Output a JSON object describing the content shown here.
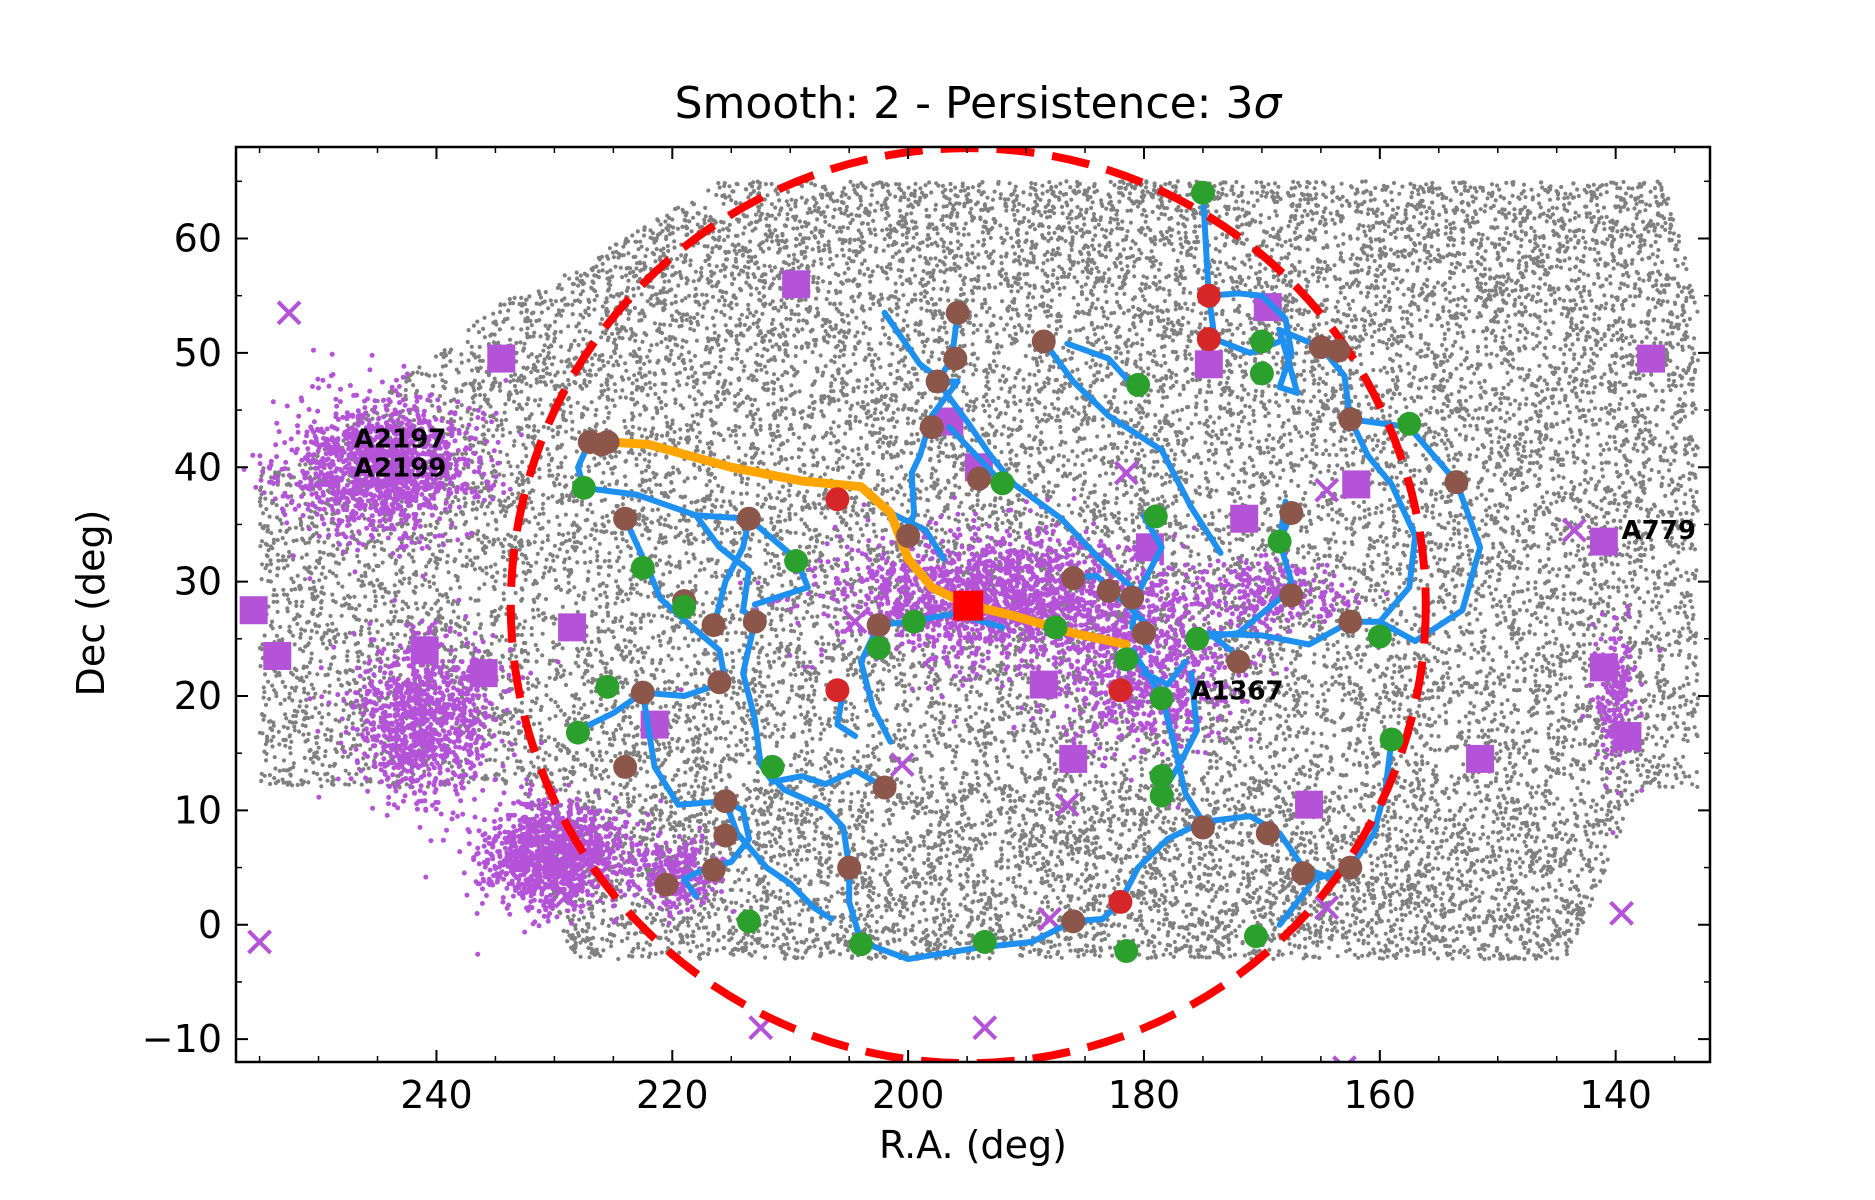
{
  "chart_data": {
    "type": "scatter",
    "title": "Smooth: 2 - Persistence: 3",
    "title_symbol": "σ",
    "xlabel": "R.A. (deg)",
    "ylabel": "Dec (deg)",
    "xlim": [
      257,
      132
    ],
    "ylim": [
      -12,
      68
    ],
    "x_ticks": [
      240,
      220,
      200,
      180,
      160,
      140
    ],
    "y_ticks": [
      -10,
      0,
      10,
      20,
      30,
      40,
      50,
      60
    ],
    "x_tick_labels": [
      "240",
      "220",
      "200",
      "180",
      "160",
      "140"
    ],
    "y_tick_labels": [
      "−10",
      "0",
      "10",
      "20",
      "30",
      "40",
      "50",
      "60"
    ],
    "grid": false,
    "colors": {
      "galaxies": "#808080",
      "cluster_members": "#b452d8",
      "filaments": "#1e90f0",
      "main_filament": "#ffa500",
      "circle": "#ff0000",
      "center": "#ff0000",
      "critical_min": "#2ca02c",
      "critical_saddle": "#8c564b",
      "critical_max": "#d62728"
    },
    "circle": {
      "center": [
        194.9,
        27.9
      ],
      "radius_deg": 40,
      "style": "dashed"
    },
    "center_marker": {
      "ra": 194.9,
      "dec": 27.9,
      "marker": "square"
    },
    "cluster_labels": [
      {
        "text": "A2197",
        "ra": 247.0,
        "dec": 42.5
      },
      {
        "text": "A2199",
        "ra": 247.0,
        "dec": 40.0
      },
      {
        "text": "A779",
        "ra": 139.5,
        "dec": 34.5
      },
      {
        "text": "A1367",
        "ra": 176.0,
        "dec": 20.5
      }
    ],
    "cluster_squares": [
      [
        209.5,
        56
      ],
      [
        234.5,
        49.5
      ],
      [
        255.5,
        27.5
      ],
      [
        253.5,
        23.5
      ],
      [
        241,
        24
      ],
      [
        236,
        22
      ],
      [
        228.5,
        26
      ],
      [
        221.5,
        17.5
      ],
      [
        188.5,
        21
      ],
      [
        186,
        14.5
      ],
      [
        179.5,
        33
      ],
      [
        171.5,
        35.5
      ],
      [
        169.5,
        54
      ],
      [
        174.5,
        49
      ],
      [
        162,
        38.5
      ],
      [
        166,
        10.5
      ],
      [
        151.5,
        14.5
      ],
      [
        141,
        33.5
      ],
      [
        141,
        22.5
      ],
      [
        139,
        16.5
      ],
      [
        137,
        49.5
      ],
      [
        196.5,
        44
      ],
      [
        194,
        40
      ]
    ],
    "crosses": [
      [
        252.5,
        53.5
      ],
      [
        255,
        -1.5
      ],
      [
        212.5,
        -9
      ],
      [
        193.5,
        -9
      ],
      [
        186.5,
        10.5
      ],
      [
        181.5,
        39.5
      ],
      [
        164.5,
        38
      ],
      [
        143.5,
        34.5
      ],
      [
        139.5,
        1
      ],
      [
        164.5,
        1.5
      ],
      [
        188,
        0.5
      ],
      [
        200.5,
        14
      ],
      [
        204.5,
        26.5
      ],
      [
        229,
        2.5
      ],
      [
        163,
        -12.5
      ]
    ],
    "member_regions": [
      {
        "ra": 244.5,
        "dec": 40,
        "sra": 4.0,
        "sdec": 3.0,
        "n": 1400
      },
      {
        "ra": 241,
        "dec": 18,
        "sra": 3.0,
        "sdec": 3.5,
        "n": 1000
      },
      {
        "ra": 230,
        "dec": 6,
        "sra": 3.0,
        "sdec": 2.2,
        "n": 1200
      },
      {
        "ra": 219.5,
        "dec": 4.5,
        "sra": 1.8,
        "sdec": 1.5,
        "n": 260
      },
      {
        "ra": 192,
        "dec": 28.5,
        "sra": 7.0,
        "sdec": 2.8,
        "n": 1700
      },
      {
        "ra": 180,
        "dec": 22,
        "sra": 4.0,
        "sdec": 3.5,
        "n": 700
      },
      {
        "ra": 169,
        "dec": 29,
        "sra": 3.0,
        "sdec": 1.5,
        "n": 250
      },
      {
        "ra": 140,
        "dec": 20,
        "sra": 1.0,
        "sdec": 3.0,
        "n": 200
      }
    ],
    "galaxy_field": {
      "n": 22000,
      "dec_range": [
        -3,
        65
      ],
      "seed": 11
    },
    "main_filament": [
      [
        227,
        42.3
      ],
      [
        222,
        42
      ],
      [
        215,
        40
      ],
      [
        209,
        38.8
      ],
      [
        204,
        38.3
      ],
      [
        201.5,
        36
      ],
      [
        200,
        32
      ],
      [
        198,
        29.5
      ],
      [
        195,
        28
      ],
      [
        191,
        27
      ],
      [
        186,
        25.5
      ],
      [
        181.5,
        24.5
      ]
    ],
    "filaments": [
      [
        [
          175,
          64
        ],
        [
          174.5,
          55
        ],
        [
          172,
          55.2
        ],
        [
          170,
          55
        ],
        [
          168,
          53
        ],
        [
          167.5,
          50
        ],
        [
          168.5,
          47
        ],
        [
          167,
          46.5
        ],
        [
          168.5,
          52
        ]
      ],
      [
        [
          174.5,
          55
        ],
        [
          174,
          51.2
        ],
        [
          171,
          50
        ],
        [
          168.5,
          51
        ]
      ],
      [
        [
          168.5,
          52
        ],
        [
          165,
          50.5
        ],
        [
          163,
          48
        ],
        [
          162.5,
          44.2
        ],
        [
          157.5,
          43.5
        ],
        [
          153.5,
          38.7
        ],
        [
          151.5,
          33
        ],
        [
          153,
          27.5
        ],
        [
          157,
          24.8
        ],
        [
          160,
          26.5
        ],
        [
          162.5,
          26.5
        ],
        [
          166,
          24.5
        ],
        [
          170,
          25.3
        ],
        [
          176,
          25.5
        ]
      ],
      [
        [
          162.5,
          44.2
        ],
        [
          161,
          41
        ],
        [
          159,
          38.5
        ],
        [
          157,
          34
        ],
        [
          157.5,
          29.5
        ],
        [
          160,
          26.5
        ]
      ],
      [
        [
          167.5,
          36
        ],
        [
          168.5,
          33.5
        ],
        [
          167.5,
          30
        ],
        [
          168.5,
          28.5
        ],
        [
          172,
          25.5
        ],
        [
          176,
          25
        ]
      ],
      [
        [
          168.5,
          33.5
        ],
        [
          168,
          37
        ],
        [
          167.5,
          36
        ]
      ],
      [
        [
          202,
          53.5
        ],
        [
          199,
          49
        ],
        [
          197,
          47.5
        ],
        [
          195.8,
          47.5
        ],
        [
          198,
          44.5
        ],
        [
          199,
          41
        ],
        [
          199.7,
          39.5
        ],
        [
          199.5,
          36
        ],
        [
          200,
          34
        ]
      ],
      [
        [
          195.8,
          53.5
        ],
        [
          196.3,
          49.5
        ],
        [
          197.5,
          47.5
        ],
        [
          195,
          44
        ],
        [
          193,
          41
        ],
        [
          191,
          38.5
        ],
        [
          187,
          35.5
        ],
        [
          183.5,
          31.7
        ],
        [
          181,
          29.5
        ]
      ],
      [
        [
          188.5,
          51
        ],
        [
          186,
          47.5
        ],
        [
          183,
          44.5
        ],
        [
          178.5,
          41.5
        ],
        [
          176,
          36.5
        ],
        [
          173.5,
          32.5
        ]
      ],
      [
        [
          186.5,
          50.8
        ],
        [
          183,
          49.5
        ],
        [
          181,
          47.2
        ]
      ],
      [
        [
          192,
          38.6
        ],
        [
          196.5,
          43.5
        ]
      ],
      [
        [
          186.5,
          30.3
        ],
        [
          184,
          30.5
        ],
        [
          182.5,
          29
        ],
        [
          180,
          26.5
        ]
      ],
      [
        [
          180,
          35.7
        ],
        [
          178.5,
          33
        ],
        [
          180.5,
          29
        ],
        [
          181,
          26
        ],
        [
          179.5,
          24
        ]
      ],
      [
        [
          227.5,
          38.2
        ],
        [
          223,
          37.6
        ],
        [
          218,
          35.8
        ],
        [
          213.5,
          35.5
        ],
        [
          209.5,
          32
        ],
        [
          208.5,
          29.5
        ],
        [
          213,
          28
        ]
      ],
      [
        [
          227,
          42.3
        ],
        [
          228,
          40
        ],
        [
          227.5,
          38.2
        ]
      ],
      [
        [
          224,
          35.5
        ],
        [
          222,
          31
        ],
        [
          221,
          28.5
        ],
        [
          218.5,
          26.2
        ],
        [
          216,
          24
        ],
        [
          215.5,
          21.2
        ],
        [
          219,
          20
        ],
        [
          222.5,
          20.3
        ],
        [
          225,
          18.5
        ],
        [
          228,
          17
        ]
      ],
      [
        [
          218,
          35.8
        ],
        [
          216,
          33
        ],
        [
          213.5,
          31
        ],
        [
          214,
          27.5
        ],
        [
          213,
          26.5
        ]
      ],
      [
        [
          222.5,
          20.3
        ],
        [
          222,
          17
        ],
        [
          221.5,
          13.8
        ],
        [
          219.5,
          10.5
        ],
        [
          215.5,
          10.8
        ]
      ],
      [
        [
          213.5,
          35.5
        ],
        [
          214,
          33
        ],
        [
          215.5,
          30
        ],
        [
          216.5,
          26
        ]
      ],
      [
        [
          213,
          26.5
        ],
        [
          214,
          22
        ],
        [
          213,
          18
        ],
        [
          212.5,
          14
        ],
        [
          211.5,
          12.5
        ],
        [
          209,
          13
        ],
        [
          207,
          12.3
        ],
        [
          204.5,
          13.5
        ],
        [
          202,
          12
        ]
      ],
      [
        [
          215.5,
          10.8
        ],
        [
          214.5,
          8
        ],
        [
          212,
          5
        ],
        [
          210,
          3.6
        ],
        [
          208,
          1.5
        ],
        [
          206.5,
          0.5
        ]
      ],
      [
        [
          215.5,
          10.8
        ],
        [
          214,
          10
        ],
        [
          213.5,
          7.5
        ],
        [
          215,
          5.5
        ],
        [
          217,
          5
        ],
        [
          219,
          4
        ],
        [
          218,
          2.5
        ]
      ],
      [
        [
          212.5,
          14
        ],
        [
          210.5,
          11.8
        ],
        [
          207,
          10.2
        ],
        [
          205.5,
          8.5
        ],
        [
          205,
          5
        ]
      ],
      [
        [
          205,
          5
        ],
        [
          205,
          2
        ],
        [
          204,
          -1.5
        ],
        [
          200,
          -3
        ],
        [
          194,
          -2
        ],
        [
          189.5,
          -1.5
        ],
        [
          186,
          0.3
        ]
      ],
      [
        [
          201.5,
          16
        ],
        [
          203,
          19
        ],
        [
          204,
          23
        ],
        [
          202.5,
          26.2
        ],
        [
          200,
          26.5
        ],
        [
          196,
          27.2
        ],
        [
          192,
          26
        ]
      ],
      [
        [
          205.5,
          20.5
        ],
        [
          206,
          17.5
        ],
        [
          204.5,
          16.5
        ]
      ],
      [
        [
          201.5,
          36
        ],
        [
          198.5,
          34.5
        ],
        [
          197,
          32
        ]
      ],
      [
        [
          186,
          0.3
        ],
        [
          183.5,
          0.5
        ],
        [
          182,
          2
        ],
        [
          180.5,
          5
        ],
        [
          178,
          7.5
        ],
        [
          175,
          9
        ]
      ],
      [
        [
          175,
          9
        ],
        [
          171,
          9.5
        ],
        [
          168.5,
          8
        ],
        [
          166.5,
          5
        ],
        [
          164,
          4
        ],
        [
          162.5,
          5
        ]
      ],
      [
        [
          162.5,
          5
        ],
        [
          165.5,
          4
        ],
        [
          167,
          2
        ],
        [
          168.5,
          0
        ]
      ],
      [
        [
          162.5,
          5
        ],
        [
          160.5,
          8
        ],
        [
          159.5,
          12
        ],
        [
          159,
          16.2
        ]
      ],
      [
        [
          175,
          9
        ],
        [
          176.5,
          11.5
        ],
        [
          177.5,
          16
        ],
        [
          178.5,
          20
        ],
        [
          181,
          24
        ]
      ],
      [
        [
          178.5,
          11.5
        ],
        [
          177,
          14
        ],
        [
          175.5,
          17
        ],
        [
          176,
          22
        ]
      ],
      [
        [
          176,
          25
        ],
        [
          174.5,
          25.5
        ],
        [
          172,
          23.5
        ]
      ],
      [
        [
          180,
          22
        ],
        [
          178,
          21
        ],
        [
          176.5,
          23
        ]
      ]
    ],
    "critical_points": {
      "minima": [
        [
          175,
          64
        ],
        [
          170,
          51
        ],
        [
          170,
          48.2
        ],
        [
          157.5,
          43.8
        ],
        [
          180.5,
          47.2
        ],
        [
          227.5,
          38.2
        ],
        [
          222.5,
          31.2
        ],
        [
          219,
          27.8
        ],
        [
          209.5,
          31.8
        ],
        [
          192,
          38.6
        ],
        [
          199.5,
          26.5
        ],
        [
          202.5,
          24.2
        ],
        [
          187.5,
          26
        ],
        [
          181.5,
          23.2
        ],
        [
          175.5,
          25
        ],
        [
          168.5,
          33.5
        ],
        [
          179,
          35.7
        ],
        [
          178.5,
          19.8
        ],
        [
          160,
          25.2
        ],
        [
          159,
          16.2
        ],
        [
          225.5,
          20.8
        ],
        [
          228,
          16.8
        ],
        [
          211.5,
          13.8
        ],
        [
          178.5,
          13
        ],
        [
          178.5,
          11.3
        ],
        [
          213.5,
          0.3
        ],
        [
          204,
          -1.7
        ],
        [
          193.5,
          -1.5
        ],
        [
          181.5,
          -2.3
        ],
        [
          170.5,
          -1
        ]
      ],
      "saddles": [
        [
          227,
          42.2
        ],
        [
          226,
          42
        ],
        [
          225.5,
          42.2
        ],
        [
          195.8,
          53.5
        ],
        [
          196,
          49.5
        ],
        [
          197.5,
          47.5
        ],
        [
          198,
          43.5
        ],
        [
          188.5,
          51
        ],
        [
          165,
          50.5
        ],
        [
          163.5,
          50.2
        ],
        [
          162.5,
          44.2
        ],
        [
          153.5,
          38.7
        ],
        [
          167.5,
          36
        ],
        [
          167.5,
          28.8
        ],
        [
          162.5,
          26.5
        ],
        [
          172,
          23
        ],
        [
          224,
          35.5
        ],
        [
          213.5,
          35.5
        ],
        [
          200,
          34
        ],
        [
          194,
          39
        ],
        [
          186,
          30.3
        ],
        [
          183,
          29.2
        ],
        [
          181,
          28.6
        ],
        [
          180,
          25.5
        ],
        [
          219,
          28.3
        ],
        [
          216.5,
          26.2
        ],
        [
          213,
          26.5
        ],
        [
          216,
          21.2
        ],
        [
          222.5,
          20.3
        ],
        [
          224,
          13.8
        ],
        [
          215.5,
          10.8
        ],
        [
          215.5,
          7.8
        ],
        [
          216.5,
          4.8
        ],
        [
          220.5,
          3.5
        ],
        [
          205,
          5
        ],
        [
          202,
          12
        ],
        [
          202.5,
          26.2
        ],
        [
          186,
          0.3
        ],
        [
          175,
          8.5
        ],
        [
          169.5,
          8
        ],
        [
          166.5,
          4.5
        ],
        [
          162.5,
          5
        ]
      ],
      "maxima": [
        [
          174.5,
          55
        ],
        [
          174.5,
          51.2
        ],
        [
          206,
          37.2
        ],
        [
          206,
          20.5
        ],
        [
          182,
          20.5
        ],
        [
          182,
          2
        ]
      ]
    }
  }
}
